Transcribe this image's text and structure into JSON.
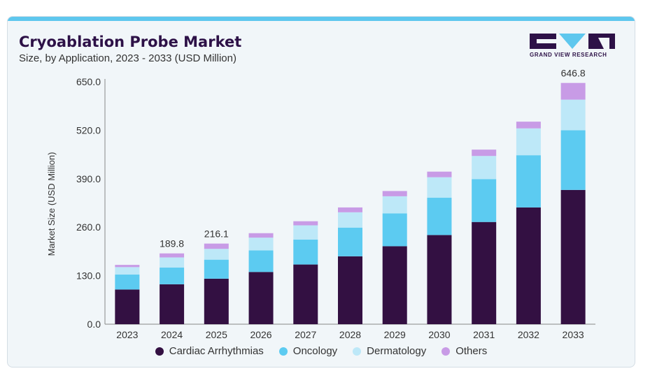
{
  "header": {
    "title": "Cryoablation Probe Market",
    "subtitle": "Size, by Application, 2023 - 2033 (USD Million)"
  },
  "logo": {
    "text": "GRAND VIEW RESEARCH",
    "colors": [
      "#2d1147",
      "#5ec7ee",
      "#2d1147"
    ]
  },
  "colors": {
    "accent_bar": "#5ec7ee",
    "title": "#2d1147"
  },
  "chart_data": {
    "type": "bar",
    "stacked": true,
    "title": "",
    "xlabel": "",
    "ylabel": "Market Size (USD Million)",
    "ylim": [
      0,
      650
    ],
    "yticks": [
      "0.0",
      "130.0",
      "260.0",
      "390.0",
      "520.0",
      "650.0"
    ],
    "categories": [
      "2023",
      "2024",
      "2025",
      "2026",
      "2027",
      "2028",
      "2029",
      "2030",
      "2031",
      "2032",
      "2033"
    ],
    "series": [
      {
        "name": "Cardiac Arrhythmias",
        "color": "#331042",
        "values": [
          93,
          107,
          122,
          140,
          160,
          182,
          209,
          239,
          274,
          313,
          360
        ]
      },
      {
        "name": "Oncology",
        "color": "#5ccbf1",
        "values": [
          40,
          45,
          51,
          58,
          67,
          77,
          88,
          100,
          115,
          140,
          160
        ]
      },
      {
        "name": "Dermatology",
        "color": "#bde8f8",
        "values": [
          20,
          27,
          29,
          34,
          38,
          41,
          46,
          55,
          62,
          72,
          82
        ]
      },
      {
        "name": "Others",
        "color": "#c89be6",
        "values": [
          6,
          10.8,
          14.1,
          12,
          11,
          13,
          14,
          15,
          17,
          18,
          44.8
        ]
      }
    ],
    "data_labels": [
      {
        "category": "2024",
        "label": "189.8"
      },
      {
        "category": "2025",
        "label": "216.1"
      },
      {
        "category": "2033",
        "label": "646.8"
      }
    ],
    "legend_position": "bottom",
    "grid": false
  }
}
